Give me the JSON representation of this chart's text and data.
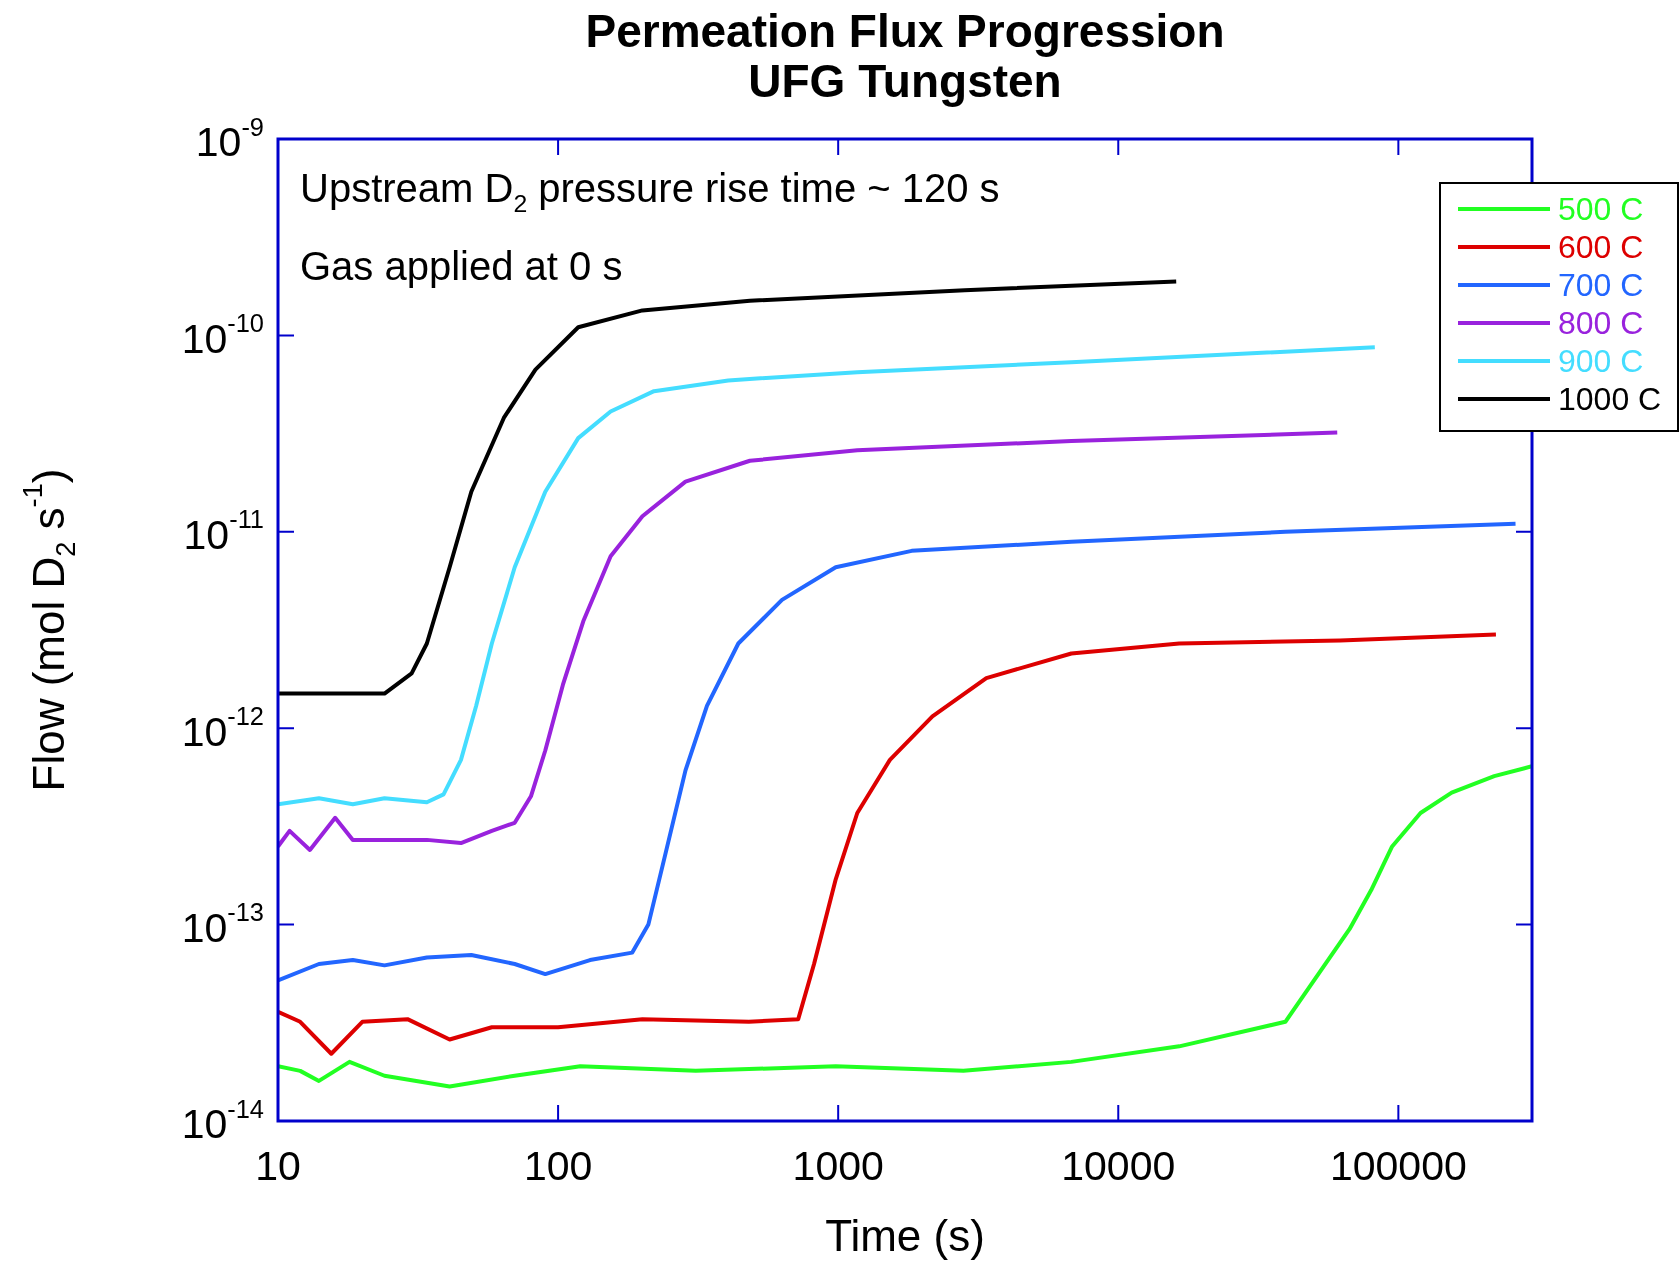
{
  "chart_data": {
    "type": "line",
    "title": "Permeation Flux Progression",
    "subtitle": "UFG Tungsten",
    "xlabel": "Time (s)",
    "ylabel": "Flow (mol D$_{2}$ s$^{-1}$)",
    "annotations": [
      "Upstream D$_{2}$ pressure rise time ~ 120 s",
      "Gas applied at 0 s"
    ],
    "log": "xy",
    "grid": false,
    "legend": "top right",
    "marker": "none",
    "line_style": "solid",
    "xlim": [
      10,
      300000
    ],
    "xticks": [
      10,
      100,
      1000,
      10000,
      100000
    ],
    "ylim": [
      1e-14,
      1e-09
    ],
    "yticks": [
      {
        "value": 1e-14,
        "label": "10$^{-14}$"
      },
      {
        "value": 1e-13,
        "label": "10$^{-13}$"
      },
      {
        "value": 1e-12,
        "label": "10$^{-12}$"
      },
      {
        "value": 1e-11,
        "label": "10$^{-11}$"
      },
      {
        "value": 1e-10,
        "label": "10$^{-10}$"
      },
      {
        "value": 1e-09,
        "label": "10$^{-9}$"
      }
    ],
    "series": [
      {
        "name": "500 C",
        "color": "#22ff22",
        "x": [
          10,
          12,
          14,
          18,
          24,
          41,
          70,
          120,
          310,
          980,
          2800,
          6800,
          16500,
          39500,
          67000,
          80000,
          95000,
          120000,
          155000,
          220000,
          300000
        ],
        "values": [
          1.9e-14,
          1.8e-14,
          1.6e-14,
          2e-14,
          1.7e-14,
          1.5e-14,
          1.7e-14,
          1.9e-14,
          1.8e-14,
          1.9e-14,
          1.8e-14,
          2e-14,
          2.4e-14,
          3.2e-14,
          9.5e-14,
          1.5e-13,
          2.5e-13,
          3.7e-13,
          4.7e-13,
          5.7e-13,
          6.4e-13
        ]
      },
      {
        "name": "600 C",
        "color": "#dd0000",
        "x": [
          10,
          12,
          15.5,
          20,
          29,
          41,
          58,
          100,
          200,
          480,
          720,
          820,
          980,
          1170,
          1530,
          2170,
          3380,
          6800,
          16500,
          62000,
          223000
        ],
        "values": [
          3.6e-14,
          3.2e-14,
          2.2e-14,
          3.2e-14,
          3.3e-14,
          2.6e-14,
          3e-14,
          3e-14,
          3.3e-14,
          3.2e-14,
          3.3e-14,
          6.3e-14,
          1.7e-13,
          3.7e-13,
          6.9e-13,
          1.15e-12,
          1.8e-12,
          2.4e-12,
          2.7e-12,
          2.8e-12,
          3e-12
        ]
      },
      {
        "name": "700 C",
        "color": "#2266ff",
        "x": [
          10,
          14,
          18.5,
          24,
          34,
          49,
          70,
          90,
          130,
          184,
          210,
          240,
          285,
          340,
          440,
          630,
          980,
          1830,
          6800,
          39500,
          262000
        ],
        "values": [
          5.2e-14,
          6.3e-14,
          6.6e-14,
          6.2e-14,
          6.8e-14,
          7e-14,
          6.3e-14,
          5.6e-14,
          6.6e-14,
          7.2e-14,
          1e-13,
          2.2e-13,
          6.1e-13,
          1.3e-12,
          2.7e-12,
          4.5e-12,
          6.6e-12,
          8e-12,
          8.9e-12,
          1e-11,
          1.1e-11
        ]
      },
      {
        "name": "800 C",
        "color": "#9922dd",
        "x": [
          10,
          11,
          13,
          16,
          18.5,
          24,
          34,
          45,
          58,
          70,
          80,
          90,
          104,
          123,
          154,
          200,
          285,
          484,
          1170,
          6800,
          60500
        ],
        "values": [
          2.5e-13,
          3e-13,
          2.4e-13,
          3.5e-13,
          2.7e-13,
          2.7e-13,
          2.7e-13,
          2.6e-13,
          3e-13,
          3.3e-13,
          4.5e-13,
          7.7e-13,
          1.66e-12,
          3.5e-12,
          7.5e-12,
          1.2e-11,
          1.8e-11,
          2.3e-11,
          2.6e-11,
          2.9e-11,
          3.2e-11
        ]
      },
      {
        "name": "900 C",
        "color": "#44ddff",
        "x": [
          10,
          14,
          18.5,
          24,
          34,
          39,
          45,
          51,
          58,
          70,
          90,
          118,
          154,
          220,
          405,
          1170,
          6800,
          82400
        ],
        "values": [
          4.1e-13,
          4.4e-13,
          4.1e-13,
          4.4e-13,
          4.2e-13,
          4.6e-13,
          6.9e-13,
          1.3e-12,
          2.7e-12,
          6.6e-12,
          1.6e-11,
          3e-11,
          4.1e-11,
          5.2e-11,
          5.9e-11,
          6.5e-11,
          7.3e-11,
          8.7e-11
        ]
      },
      {
        "name": "1000 C",
        "color": "#000000",
        "x": [
          10,
          24,
          30,
          34,
          41,
          49,
          64,
          83,
          118,
          200,
          484,
          2830,
          16100
        ],
        "values": [
          1.5e-12,
          1.5e-12,
          1.9e-12,
          2.7e-12,
          6.6e-12,
          1.6e-11,
          3.8e-11,
          6.7e-11,
          1.1e-10,
          1.34e-10,
          1.5e-10,
          1.7e-10,
          1.88e-10
        ]
      }
    ]
  }
}
